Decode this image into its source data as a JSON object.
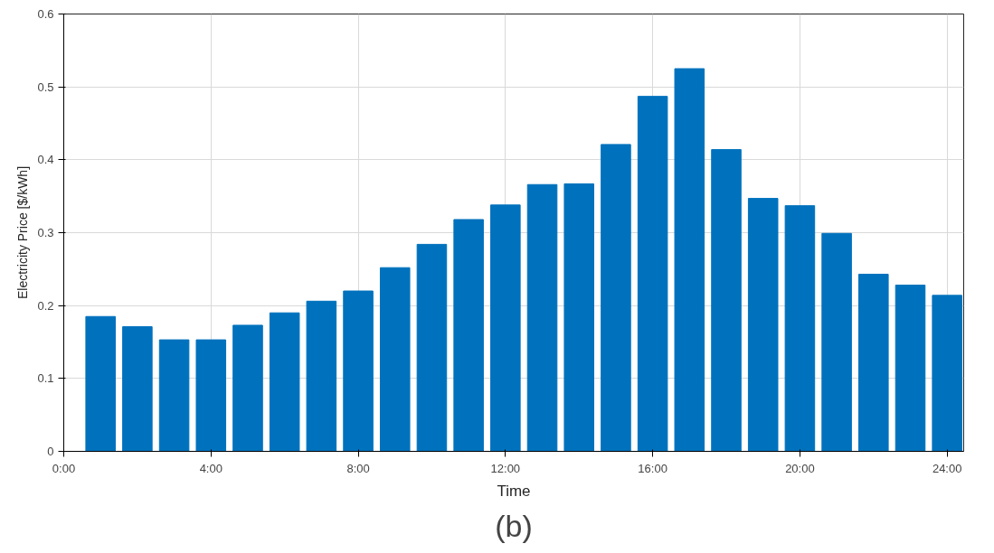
{
  "chart_data": {
    "type": "bar",
    "xlabel": "Time",
    "ylabel": "Electricity Price [$/kWh]",
    "annotations": [
      "(b)"
    ],
    "x": [
      1,
      2,
      3,
      4,
      5,
      6,
      7,
      8,
      9,
      10,
      11,
      12,
      13,
      14,
      15,
      16,
      17,
      18,
      19,
      20,
      21,
      22,
      23,
      24
    ],
    "values": [
      0.185,
      0.171,
      0.153,
      0.153,
      0.173,
      0.19,
      0.206,
      0.22,
      0.252,
      0.284,
      0.318,
      0.338,
      0.366,
      0.367,
      0.421,
      0.487,
      0.525,
      0.414,
      0.347,
      0.337,
      0.299,
      0.243,
      0.228,
      0.214
    ],
    "color": "#0072bd",
    "xlim": [
      0,
      24.45
    ],
    "ylim": [
      0,
      0.6
    ],
    "xticks": [
      {
        "value": 0,
        "label": "0:00"
      },
      {
        "value": 4,
        "label": "4:00"
      },
      {
        "value": 8,
        "label": "8:00"
      },
      {
        "value": 12,
        "label": "12:00"
      },
      {
        "value": 16,
        "label": "16:00"
      },
      {
        "value": 20,
        "label": "20:00"
      },
      {
        "value": 24,
        "label": "24:00"
      }
    ],
    "yticks": [
      0,
      0.1,
      0.2,
      0.3,
      0.4,
      0.5,
      0.6
    ],
    "grid": true
  }
}
